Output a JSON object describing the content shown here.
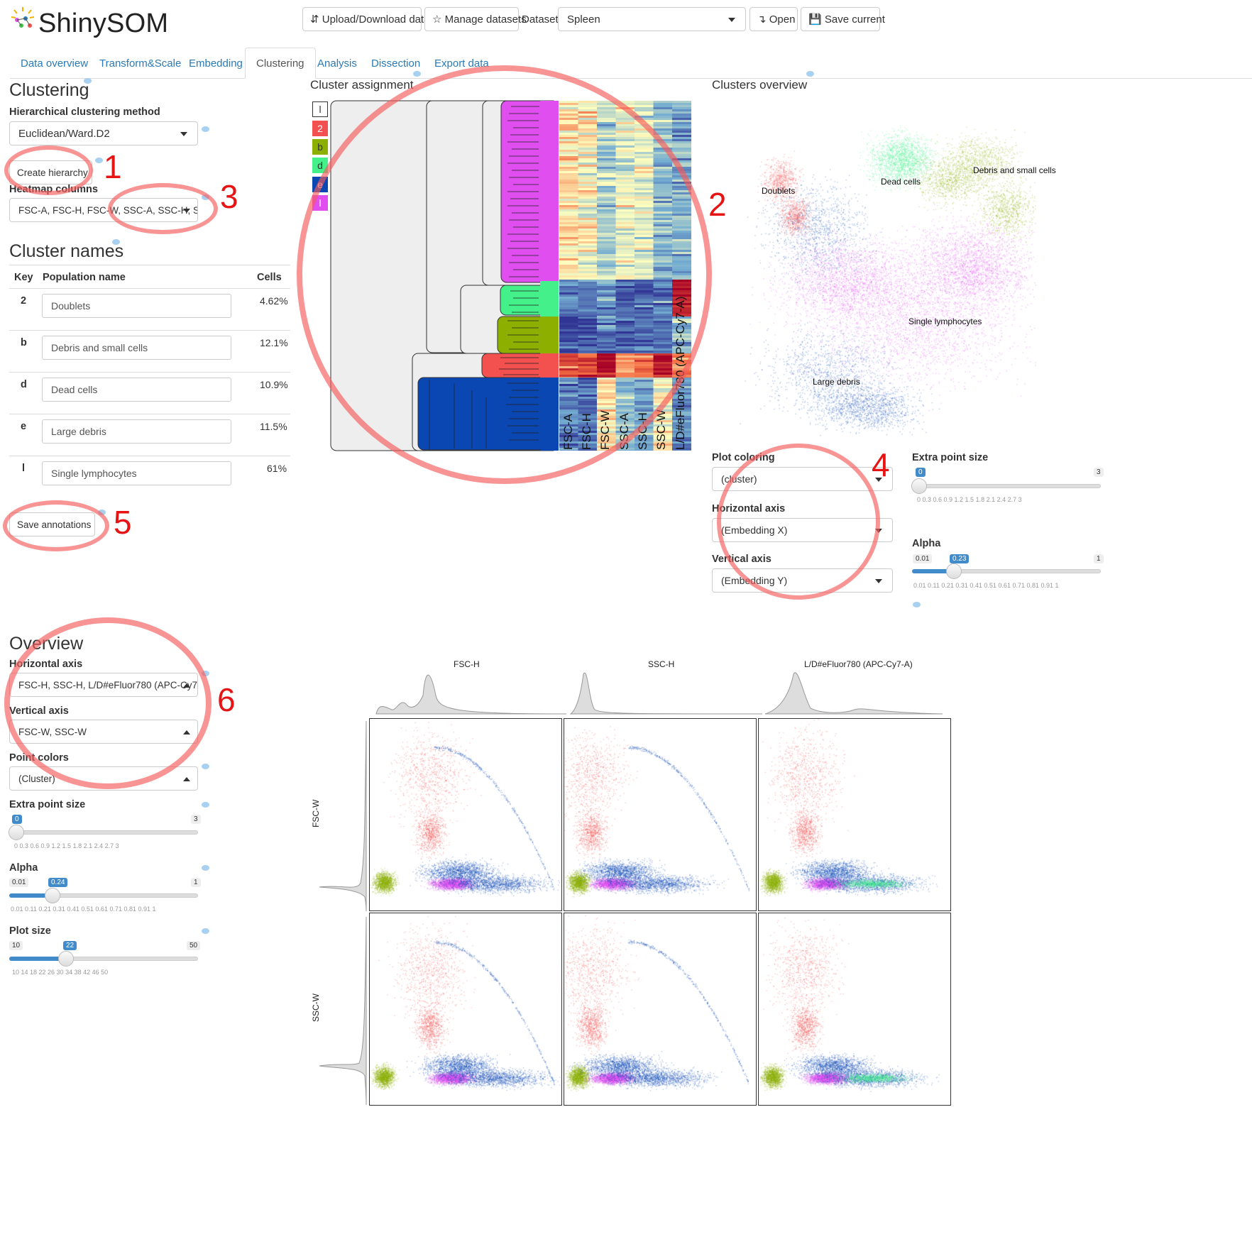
{
  "app": {
    "title": "ShinySOM"
  },
  "toolbar": {
    "upload_label": "⇵ Upload/Download data",
    "manage_label": "☆ Manage datasets",
    "dataset_label": "Dataset",
    "dataset_value": "Spleen",
    "open_label": "↴ Open",
    "save_label": "💾 Save current"
  },
  "tabs": [
    {
      "label": "Data overview"
    },
    {
      "label": "Transform&Scale"
    },
    {
      "label": "Embedding"
    },
    {
      "label": "Clustering"
    },
    {
      "label": "Analysis"
    },
    {
      "label": "Dissection"
    },
    {
      "label": "Export data"
    }
  ],
  "clustering": {
    "heading": "Clustering",
    "method_label": "Hierarchical clustering method",
    "method_value": "Euclidean/Ward.D2",
    "create_button": "Create hierarchy",
    "heatmap_label": "Heatmap columns",
    "heatmap_value": "FSC-A, FSC-H, FSC-W, SSC-A, SSC-H, S"
  },
  "cluster_names": {
    "heading": "Cluster names",
    "columns": [
      "Key",
      "Population name",
      "Cells"
    ],
    "rows": [
      {
        "key": "2",
        "name": "Doublets",
        "cells": "4.62%"
      },
      {
        "key": "b",
        "name": "Debris and small cells",
        "cells": "12.1%"
      },
      {
        "key": "d",
        "name": "Dead cells",
        "cells": "10.9%"
      },
      {
        "key": "e",
        "name": "Large debris",
        "cells": "11.5%"
      },
      {
        "key": "l",
        "name": "Single lymphocytes",
        "cells": "61%"
      }
    ],
    "save_button": "Save annotations"
  },
  "cluster_assignment": {
    "heading": "Cluster assignment",
    "legend": [
      {
        "key": "l",
        "color": "#ffffff"
      },
      {
        "key": "2",
        "color": "#f35050"
      },
      {
        "key": "b",
        "color": "#8db000"
      },
      {
        "key": "d",
        "color": "#43f08a"
      },
      {
        "key": "e",
        "color": "#0b47b3"
      },
      {
        "key": "l",
        "color": "#e04ef0"
      }
    ],
    "heatmap_columns": [
      "FSC-A",
      "FSC-H",
      "FSC-W",
      "SSC-A",
      "SSC-H",
      "SSC-W",
      "L/D#eFluor780 (APC-Cy7-A)"
    ]
  },
  "clusters_overview": {
    "heading": "Clusters overview",
    "labels": [
      "Doublets",
      "Dead cells",
      "Debris and small cells",
      "Single lymphocytes",
      "Large debris"
    ],
    "plot_coloring_label": "Plot coloring",
    "plot_coloring_value": "(cluster)",
    "horizontal_label": "Horizontal axis",
    "horizontal_value": "(Embedding X)",
    "vertical_label": "Vertical axis",
    "vertical_value": "(Embedding Y)",
    "point_size_label": "Extra point size",
    "point_size": {
      "min": "0",
      "max": "3",
      "value": "0",
      "ticks": "0    0.3    0.6    0.9    1.2    1.5    1.8    2.1    2.4    2.7    3"
    },
    "alpha_label": "Alpha",
    "alpha": {
      "min": "0.01",
      "max": "1",
      "value": "0.23",
      "fraction": 0.22,
      "ticks": "0.01   0.11   0.21   0.31   0.41   0.51   0.61   0.71   0.81   0.91   1"
    }
  },
  "overview": {
    "heading": "Overview",
    "horizontal_label": "Horizontal axis",
    "horizontal_value": "FSC-H, SSC-H, L/D#eFluor780 (APC-Cy7",
    "vertical_label": "Vertical axis",
    "vertical_value": "FSC-W, SSC-W",
    "point_colors_label": "Point colors",
    "point_colors_value": "(Cluster)",
    "point_size_label": "Extra point size",
    "point_size": {
      "min": "0",
      "max": "3",
      "value": "0",
      "ticks": "0    0.3    0.6    0.9    1.2    1.5    1.8    2.1    2.4    2.7    3"
    },
    "alpha_label": "Alpha",
    "alpha": {
      "min": "0.01",
      "max": "1",
      "value": "0.24",
      "fraction": 0.23,
      "ticks": "0.01   0.11   0.21   0.31   0.41   0.51   0.61   0.71   0.81   0.91   1"
    },
    "plot_size_label": "Plot size",
    "plot_size": {
      "min": "10",
      "max": "50",
      "value": "22",
      "fraction": 0.3,
      "ticks": "10     14     18     22     26     30     34     38     42     46     50"
    },
    "col_labels": [
      "FSC-H",
      "SSC-H",
      "L/D#eFluor780 (APC-Cy7-A)"
    ],
    "row_labels": [
      "FSC-W",
      "SSC-W"
    ]
  },
  "annotations": [
    "1",
    "2",
    "3",
    "4",
    "5",
    "6"
  ],
  "colors": {
    "doublets": "#f35050",
    "debris": "#8db000",
    "dead": "#43f08a",
    "large_debris": "#0b47b3",
    "lymph": "#e04ef0",
    "accent": "#428bca"
  }
}
